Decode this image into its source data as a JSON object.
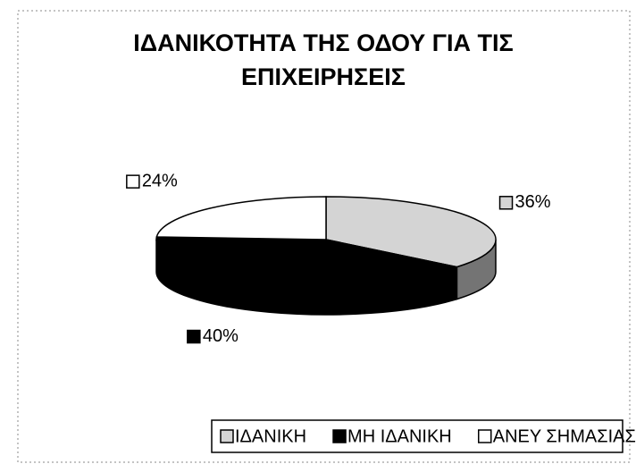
{
  "chart_data": {
    "type": "pie3d",
    "title": [
      "ΙΔΑΝΙΚΟΤΗΤΑ ΤΗΣ ΟΔΟΥ ΓΙΑ ΤΙΣ",
      "ΕΠΙΧΕΙΡΗΣΕΙΣ"
    ],
    "categories": [
      "ΙΔΑΝΙΚΗ",
      "ΜΗ ΙΔΑΝΙΚΗ",
      "ΑΝΕΥ ΣΗΜΑΣΙΑΣ"
    ],
    "values": [
      36,
      40,
      24
    ],
    "value_labels": [
      "36%",
      "40%",
      "24%"
    ],
    "colors": [
      "#d4d4d4",
      "#000000",
      "#ffffff"
    ],
    "legend": "bottom"
  }
}
